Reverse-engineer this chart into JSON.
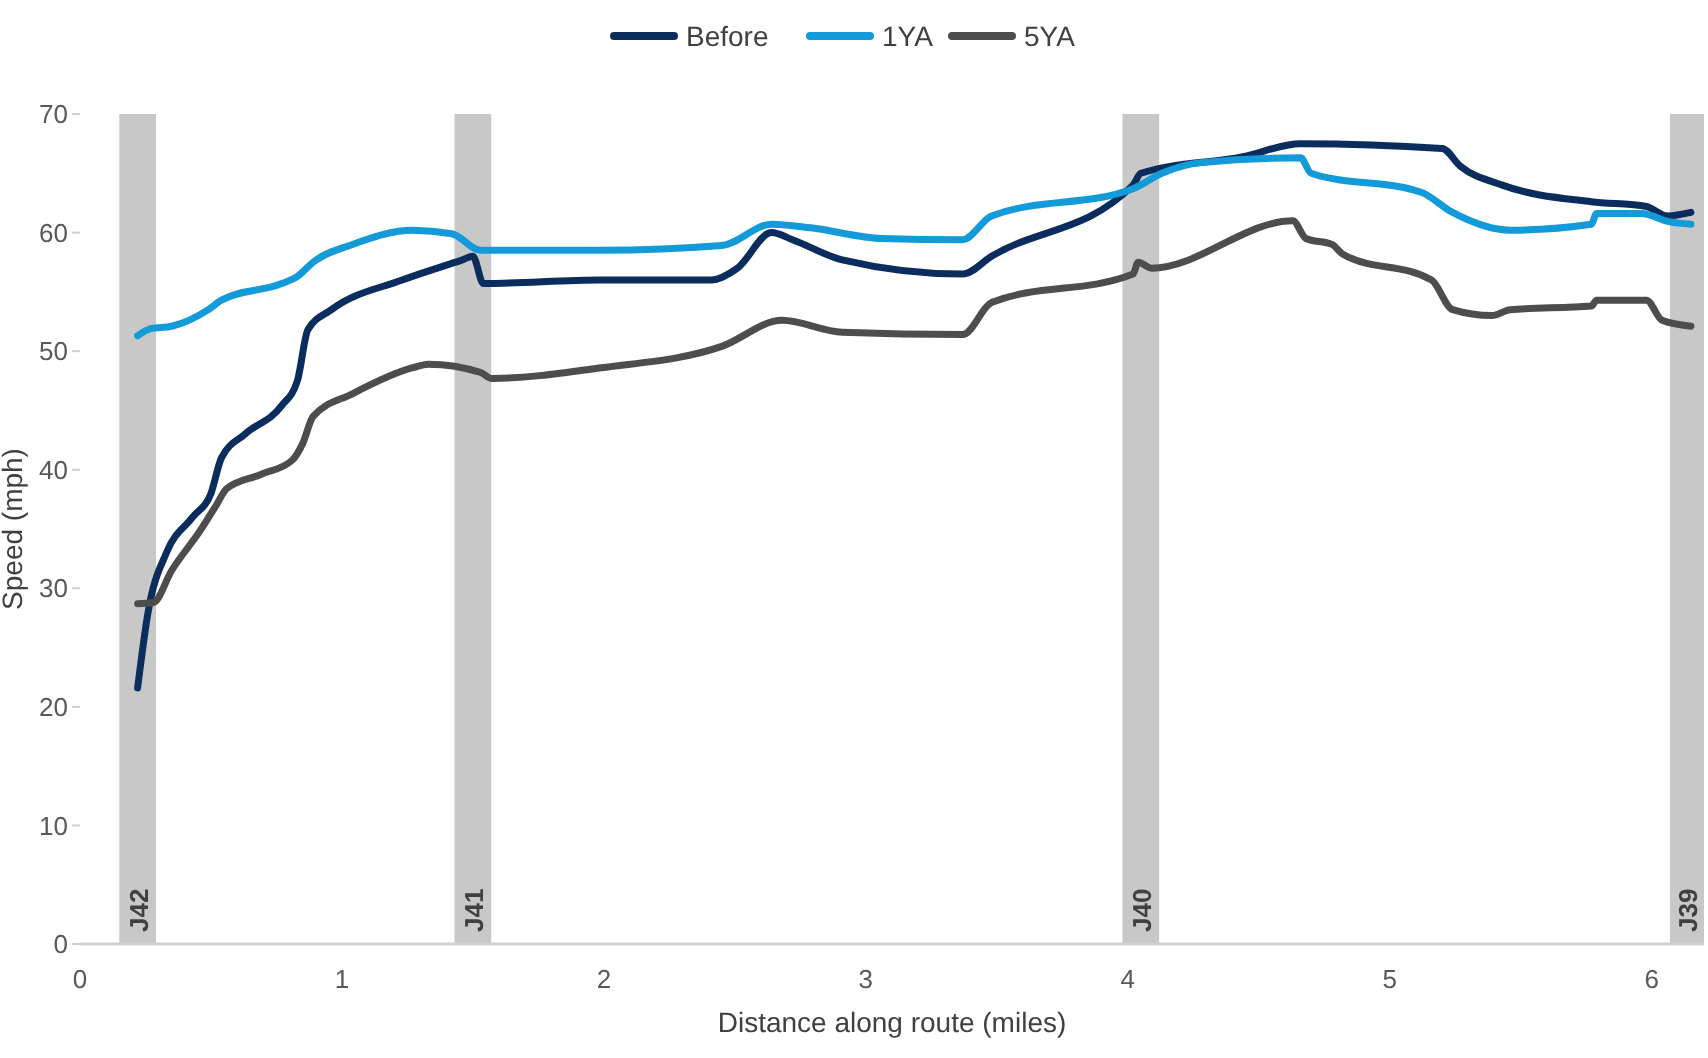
{
  "chart_data": {
    "type": "line",
    "xlabel": "Distance along route (miles)",
    "ylabel": "Speed (mph)",
    "xlim": [
      0,
      6.2
    ],
    "ylim": [
      0,
      70
    ],
    "xticks": [
      0,
      1,
      2,
      3,
      4,
      5,
      6
    ],
    "yticks": [
      0,
      10,
      20,
      30,
      40,
      50,
      60,
      70
    ],
    "grid": false,
    "legend": "top",
    "line_style": "solid",
    "marker": "none",
    "bands": [
      {
        "axis": "x",
        "from": 0.15,
        "to": 0.29,
        "label": "J42",
        "color": "#c8c8c8"
      },
      {
        "axis": "x",
        "from": 1.43,
        "to": 1.57,
        "label": "J41",
        "color": "#c8c8c8"
      },
      {
        "axis": "x",
        "from": 3.98,
        "to": 4.12,
        "label": "J40",
        "color": "#c8c8c8"
      },
      {
        "axis": "x",
        "from": 6.07,
        "to": 6.2,
        "label": "J39",
        "color": "#c8c8c8"
      }
    ],
    "series": [
      {
        "name": "Before",
        "color": "#0b2d5e",
        "x": [
          0.22,
          0.26,
          0.33,
          0.43,
          0.5,
          0.54,
          0.63,
          0.77,
          0.83,
          0.87,
          0.96,
          1.23,
          1.46,
          1.5,
          1.54,
          1.99,
          2.41,
          2.51,
          2.64,
          2.72,
          2.91,
          3.37,
          3.48,
          4.02,
          4.05,
          4.44,
          4.66,
          5.2,
          5.27,
          5.43,
          5.77,
          5.98,
          6.06,
          6.15
        ],
        "values": [
          21.6,
          28,
          33,
          36,
          38,
          41,
          43,
          45.4,
          47.5,
          51.8,
          53.5,
          56,
          57.7,
          58,
          55.7,
          56,
          56,
          57,
          60,
          59.4,
          57.7,
          56.5,
          58,
          64,
          65,
          66.4,
          67.5,
          67.1,
          65.6,
          64,
          62.6,
          62.2,
          61.4,
          61.7
        ]
      },
      {
        "name": "1YA",
        "color": "#139ad8",
        "x": [
          0.22,
          0.27,
          0.35,
          0.49,
          0.54,
          0.77,
          0.83,
          0.89,
          1.04,
          1.27,
          1.42,
          1.53,
          1.99,
          2.45,
          2.64,
          2.79,
          3.06,
          3.37,
          3.48,
          4.02,
          4.13,
          4.28,
          4.66,
          4.7,
          5.12,
          5.24,
          5.46,
          5.77,
          5.79,
          5.96,
          6.07,
          6.15
        ],
        "values": [
          51.3,
          51.9,
          52.1,
          53.5,
          54.3,
          55.7,
          56.3,
          57.5,
          59,
          60.2,
          59.9,
          58.5,
          58.5,
          58.9,
          60.7,
          60.4,
          59.5,
          59.4,
          61.4,
          63.7,
          65,
          65.9,
          66.3,
          65,
          63.4,
          61.7,
          60.2,
          60.7,
          61.6,
          61.6,
          60.9,
          60.7
        ]
      },
      {
        "name": "5YA",
        "color": "#4d4d4d",
        "x": [
          0.22,
          0.28,
          0.35,
          0.46,
          0.52,
          0.56,
          0.69,
          0.81,
          0.85,
          0.89,
          1.04,
          1.27,
          1.33,
          1.53,
          1.57,
          1.99,
          2.45,
          2.68,
          2.91,
          3.37,
          3.48,
          4.02,
          4.04,
          4.09,
          4.63,
          4.68,
          4.78,
          4.82,
          5.16,
          5.24,
          5.39,
          5.46,
          5.77,
          5.79,
          5.98,
          6.04,
          6.15
        ],
        "values": [
          28.7,
          28.8,
          31.5,
          34.9,
          37,
          38.4,
          39.6,
          40.8,
          42.2,
          44.5,
          46.4,
          48.6,
          48.9,
          48.2,
          47.7,
          48.6,
          50.4,
          52.6,
          51.6,
          51.4,
          54.1,
          56.5,
          57.5,
          57,
          61,
          59.5,
          59,
          58.2,
          56,
          53.5,
          53,
          53.5,
          53.8,
          54.3,
          54.3,
          52.6,
          52.1
        ]
      }
    ]
  }
}
